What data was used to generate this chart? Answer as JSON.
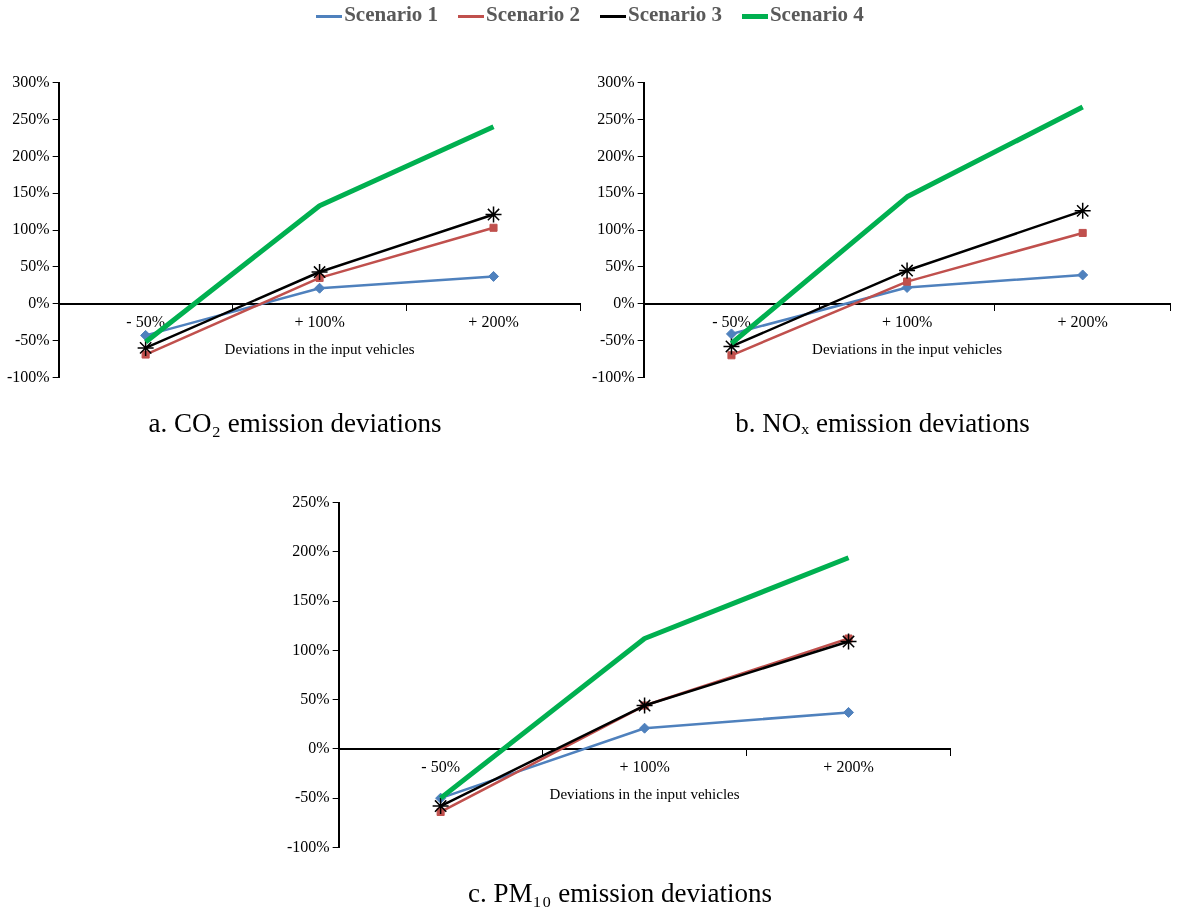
{
  "chart_data": [
    {
      "type": "line",
      "title": "a. CO₂ emission deviations",
      "xlabel": "Deviations in the input vehicles",
      "categories": [
        "- 50%",
        "+ 100%",
        "+ 200%"
      ],
      "ylim": [
        -100,
        300
      ],
      "yticks": [
        {
          "value": -100,
          "label": "-100%"
        },
        {
          "value": -50,
          "label": "-50%"
        },
        {
          "value": 0,
          "label": "0%"
        },
        {
          "value": 50,
          "label": "50%"
        },
        {
          "value": 100,
          "label": "100%"
        },
        {
          "value": 150,
          "label": "150%"
        },
        {
          "value": 200,
          "label": "200%"
        },
        {
          "value": 250,
          "label": "250%"
        },
        {
          "value": 300,
          "label": "300%"
        }
      ],
      "grid": false,
      "legend": "top",
      "series": [
        {
          "name": "Scenario 1",
          "color": "#4f81bd",
          "marker": "diamond",
          "values": [
            -43,
            21,
            37
          ]
        },
        {
          "name": "Scenario 2",
          "color": "#c0504d",
          "marker": "square",
          "values": [
            -69,
            35,
            103
          ]
        },
        {
          "name": "Scenario 3",
          "color": "#000000",
          "marker": "cross",
          "values": [
            -60,
            43,
            121
          ]
        },
        {
          "name": "Scenario 4",
          "color": "#00b050",
          "marker": "none",
          "values": [
            -52,
            133,
            240
          ]
        }
      ]
    },
    {
      "type": "line",
      "title": "b. NOₓ emission deviations",
      "xlabel": "Deviations in the input vehicles",
      "categories": [
        "- 50%",
        "+ 100%",
        "+ 200%"
      ],
      "ylim": [
        -100,
        300
      ],
      "yticks": [
        {
          "value": -100,
          "label": "-100%"
        },
        {
          "value": -50,
          "label": "-50%"
        },
        {
          "value": 0,
          "label": "0%"
        },
        {
          "value": 50,
          "label": "50%"
        },
        {
          "value": 100,
          "label": "100%"
        },
        {
          "value": 150,
          "label": "150%"
        },
        {
          "value": 200,
          "label": "200%"
        },
        {
          "value": 250,
          "label": "250%"
        },
        {
          "value": 300,
          "label": "300%"
        }
      ],
      "grid": false,
      "legend": false,
      "series": [
        {
          "color": "#4f81bd",
          "marker": "diamond",
          "values": [
            -41,
            22,
            39
          ]
        },
        {
          "color": "#c0504d",
          "marker": "square",
          "values": [
            -70,
            30,
            96
          ]
        },
        {
          "color": "#000000",
          "marker": "cross",
          "values": [
            -58,
            45,
            126
          ]
        },
        {
          "color": "#00b050",
          "marker": "none",
          "values": [
            -54,
            145,
            267
          ]
        }
      ]
    },
    {
      "type": "line",
      "title": "c. PM₁₀ emission deviations",
      "xlabel": "Deviations in the input vehicles",
      "categories": [
        "- 50%",
        "+ 100%",
        "+ 200%"
      ],
      "ylim": [
        -100,
        250
      ],
      "yticks": [
        {
          "value": -100,
          "label": "-100%"
        },
        {
          "value": -50,
          "label": "-50%"
        },
        {
          "value": 0,
          "label": "0%"
        },
        {
          "value": 50,
          "label": "50%"
        },
        {
          "value": 100,
          "label": "100%"
        },
        {
          "value": 150,
          "label": "150%"
        },
        {
          "value": 200,
          "label": "200%"
        },
        {
          "value": 250,
          "label": "250%"
        }
      ],
      "grid": false,
      "legend": false,
      "series": [
        {
          "color": "#4f81bd",
          "marker": "diamond",
          "values": [
            -50,
            21,
            37
          ]
        },
        {
          "color": "#c0504d",
          "marker": "square",
          "values": [
            -64,
            44,
            112
          ]
        },
        {
          "color": "#000000",
          "marker": "cross",
          "values": [
            -58,
            44,
            109
          ]
        },
        {
          "color": "#00b050",
          "marker": "none",
          "values": [
            -50,
            112,
            194
          ]
        }
      ]
    }
  ]
}
